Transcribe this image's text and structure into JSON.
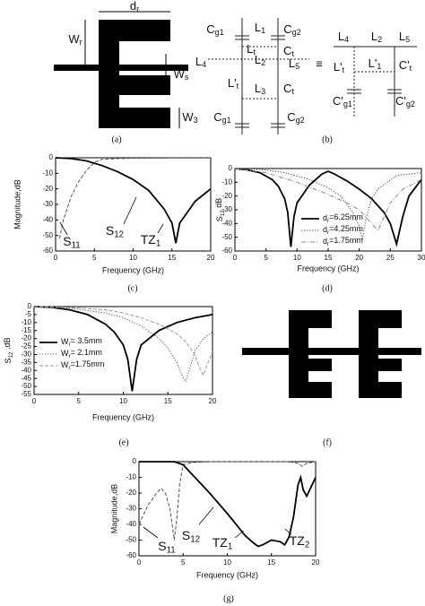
{
  "diagram_a": {
    "labels": [
      [
        "d",
        "r"
      ],
      [
        "W",
        "r"
      ],
      [
        "W",
        "s"
      ],
      [
        "W",
        "3"
      ]
    ],
    "caption": "(a)"
  },
  "diagram_b": {
    "labels": [
      [
        "C",
        "g1"
      ],
      [
        "L",
        "1"
      ],
      [
        "C",
        "g2"
      ],
      [
        "L",
        "t"
      ],
      [
        "C",
        "t"
      ],
      [
        "L",
        "4"
      ],
      [
        "L",
        "2"
      ],
      [
        "L",
        "5"
      ],
      [
        "L'",
        "t"
      ],
      [
        "L",
        "3"
      ],
      [
        "C",
        "t"
      ],
      [
        "C",
        "g1"
      ],
      [
        "C",
        "g2"
      ],
      "≡",
      [
        "L",
        "4"
      ],
      [
        "L",
        "2"
      ],
      [
        "L",
        "5"
      ],
      [
        "L'",
        "t"
      ],
      [
        "L'",
        "1"
      ],
      [
        "C'",
        "t"
      ],
      [
        "C'",
        "g1"
      ],
      [
        "C'",
        "g2"
      ]
    ],
    "caption": "(b)"
  },
  "diagram_f": {
    "caption": "(f)"
  },
  "chart_data": [
    {
      "type": "line",
      "caption": "(c)",
      "xlabel": "Frequency (GHz)",
      "ylabel": "Magnitude,dB",
      "xlim": [
        0,
        20
      ],
      "ylim": [
        -60,
        0
      ],
      "xticks": [
        0,
        5,
        10,
        15,
        20
      ],
      "yticks": [
        0,
        -10,
        -20,
        -30,
        -40,
        -50,
        -60
      ],
      "annotations": [
        [
          "S",
          "11"
        ],
        [
          "S",
          "12"
        ],
        [
          "TZ",
          "1"
        ]
      ],
      "series": [
        {
          "color": "#555555",
          "dash": "dashed",
          "width": 1,
          "x": [
            0.5,
            1,
            2,
            3,
            4,
            5,
            6,
            8,
            10,
            15,
            20
          ],
          "values": [
            -52,
            -40,
            -25,
            -15,
            -8,
            -3,
            -1,
            -0.5,
            -0.3,
            -0.2,
            -0.1
          ]
        },
        {
          "color": "#000000",
          "dash": "solid",
          "width": 1.8,
          "x": [
            0,
            2,
            4,
            6,
            8,
            10,
            12,
            14,
            15,
            15.5,
            16,
            18,
            20
          ],
          "values": [
            0,
            -0.5,
            -2,
            -5,
            -9,
            -14,
            -21,
            -33,
            -42,
            -55,
            -42,
            -28,
            -20
          ]
        }
      ]
    },
    {
      "type": "line",
      "caption": "(d)",
      "xlabel": "Frequency (GHz)",
      "ylabel": [
        "S",
        "12",
        " dB"
      ],
      "xlim": [
        0,
        30
      ],
      "ylim": [
        -60,
        0
      ],
      "xticks": [
        0,
        5,
        10,
        15,
        20,
        25,
        30
      ],
      "yticks": [
        0,
        -10,
        -20,
        -30,
        -40,
        -50,
        -60
      ],
      "series": [
        {
          "name": [
            "d",
            "r",
            "=6.25mm"
          ],
          "color": "#000000",
          "dash": "solid",
          "width": 1.8,
          "x": [
            0,
            2,
            4,
            6,
            7,
            8,
            8.5,
            9,
            9.5,
            10,
            12,
            14,
            15,
            16,
            18,
            20,
            22,
            24,
            25,
            26,
            27,
            28,
            30
          ],
          "values": [
            0,
            -1,
            -3,
            -8,
            -13,
            -22,
            -32,
            -57,
            -35,
            -25,
            -12,
            -4,
            -2,
            -4,
            -9,
            -15,
            -22,
            -32,
            -40,
            -55,
            -35,
            -20,
            -8
          ]
        },
        {
          "name": [
            "d",
            "r",
            "=4.25mm"
          ],
          "color": "#444444",
          "dash": "dotted",
          "width": 1,
          "x": [
            0,
            4,
            8,
            12,
            15,
            17,
            19,
            20,
            20.5,
            21,
            22,
            23,
            26,
            30
          ],
          "values": [
            0,
            -0.5,
            -3,
            -8,
            -14,
            -20,
            -32,
            -42,
            -52,
            -38,
            -22,
            -15,
            -5,
            -3
          ]
        },
        {
          "name": [
            "d",
            "r",
            "=1.75mm"
          ],
          "color": "#888888",
          "dash": "dashdot",
          "width": 1,
          "x": [
            0,
            5,
            10,
            14,
            18,
            20,
            21,
            22,
            23,
            24,
            25,
            27,
            30
          ],
          "values": [
            0,
            -3,
            -10,
            -17,
            -25,
            -30,
            -35,
            -40,
            -45,
            -35,
            -25,
            -15,
            -8
          ]
        }
      ]
    },
    {
      "type": "line",
      "caption": "(e)",
      "xlabel": "Frequency (GHz)",
      "ylabel": [
        "S",
        "12",
        " ,dB"
      ],
      "xlim": [
        0,
        20
      ],
      "ylim": [
        -55,
        0
      ],
      "xticks": [
        0,
        5,
        10,
        15,
        20
      ],
      "yticks": [
        0,
        -5,
        -10,
        -15,
        -20,
        -25,
        -30,
        -35,
        -40,
        -45,
        -50,
        -55
      ],
      "series": [
        {
          "name": [
            "W",
            "r",
            "= 3.5mm"
          ],
          "color": "#000000",
          "dash": "solid",
          "width": 1.8,
          "x": [
            0,
            2,
            4,
            6,
            8,
            9,
            10,
            10.5,
            11,
            11.5,
            12,
            14,
            16,
            18,
            20
          ],
          "values": [
            0,
            -0.5,
            -2,
            -5,
            -11,
            -16,
            -24,
            -33,
            -53,
            -33,
            -24,
            -15,
            -10,
            -7,
            -5
          ]
        },
        {
          "name": [
            "W",
            "r",
            "= 2.1mm"
          ],
          "color": "#555555",
          "dash": "dotted",
          "width": 1,
          "x": [
            0,
            4,
            8,
            10,
            12,
            14,
            15,
            16,
            16.5,
            17,
            17.5,
            18,
            19,
            20
          ],
          "values": [
            0,
            -1,
            -4,
            -7,
            -12,
            -20,
            -26,
            -35,
            -42,
            -47,
            -38,
            -28,
            -20,
            -16
          ]
        },
        {
          "name": [
            "W",
            "r",
            "=1.75mm"
          ],
          "color": "#999999",
          "dash": "dashed",
          "width": 1,
          "x": [
            0,
            4,
            8,
            10,
            12,
            14,
            16,
            17,
            18,
            18.5,
            19,
            19.5,
            20
          ],
          "values": [
            0,
            -0.5,
            -2,
            -4,
            -7,
            -11,
            -17,
            -22,
            -30,
            -38,
            -43,
            -35,
            -28
          ]
        }
      ]
    },
    {
      "type": "line",
      "caption": "(g)",
      "xlabel": "Frequency (GHz)",
      "ylabel": "Magnitude,dB",
      "xlim": [
        0,
        20
      ],
      "ylim": [
        -60,
        0
      ],
      "xticks": [
        0,
        5,
        10,
        15,
        20
      ],
      "yticks": [
        0,
        -10,
        -20,
        -30,
        -40,
        -50,
        -60
      ],
      "annotations": [
        [
          "S",
          "11"
        ],
        [
          "S",
          "12"
        ],
        [
          "TZ",
          "1"
        ],
        [
          "TZ",
          "2"
        ]
      ],
      "series": [
        {
          "color": "#555555",
          "dash": "dashed",
          "width": 1,
          "x": [
            0,
            1,
            2,
            2.5,
            3,
            3.5,
            4,
            4.3,
            4.6,
            5,
            6,
            8,
            10,
            12,
            14,
            16,
            17,
            18,
            18.5,
            19,
            20
          ],
          "values": [
            -40,
            -28,
            -20,
            -17,
            -20,
            -30,
            -50,
            -35,
            -15,
            -2,
            -0.5,
            0,
            0,
            0,
            0,
            0,
            0,
            -1,
            -3,
            -1,
            0
          ]
        },
        {
          "color": "#000000",
          "dash": "solid",
          "width": 1.8,
          "x": [
            0,
            2,
            4,
            5,
            6,
            8,
            10,
            11,
            12,
            13,
            13.5,
            14,
            15,
            16,
            16.5,
            17,
            17.5,
            18,
            18.3,
            18.6,
            19,
            20
          ],
          "values": [
            0,
            0,
            0,
            -2,
            -8,
            -20,
            -33,
            -40,
            -47,
            -52,
            -54,
            -53,
            -50,
            -51,
            -53,
            -48,
            -35,
            -15,
            -10,
            -18,
            -22,
            -10
          ]
        }
      ]
    }
  ]
}
